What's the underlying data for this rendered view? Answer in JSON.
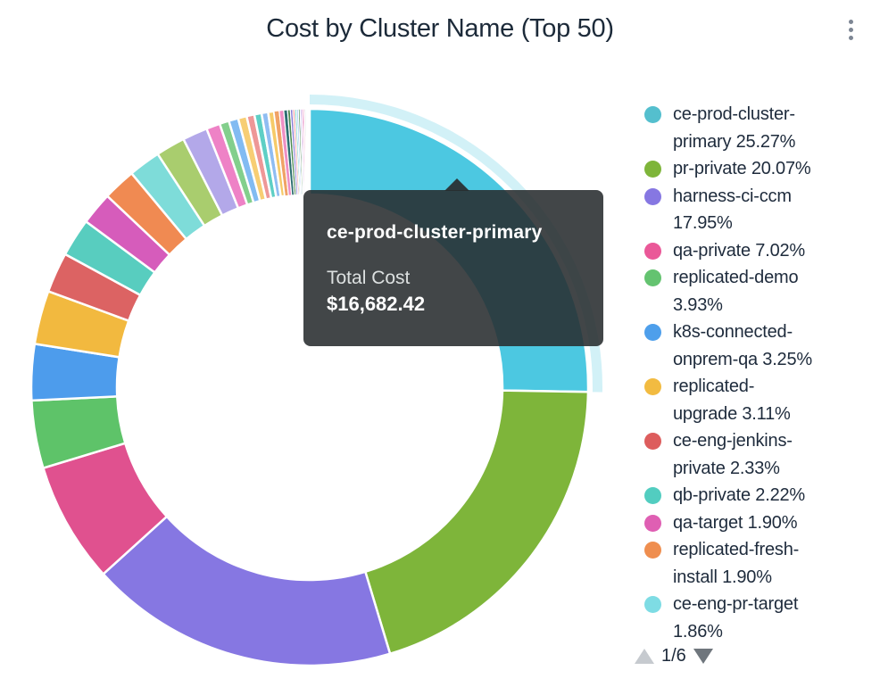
{
  "header": {
    "title": "Cost by Cluster Name (Top 50)"
  },
  "tooltip": {
    "title": "ce-prod-cluster-primary",
    "metric_label": "Total Cost",
    "metric_value": "$16,682.42"
  },
  "legend": {
    "items": [
      {
        "label": "ce-prod-cluster-primary 25.27%",
        "lines": [
          "ce-prod-cluster-",
          "primary 25.27%"
        ],
        "color": "#54bfce"
      },
      {
        "label": "pr-private 20.07%",
        "lines": [
          "pr-private 20.07%"
        ],
        "color": "#7eb53a"
      },
      {
        "label": "harness-ci-ccm 17.95%",
        "lines": [
          "harness-ci-ccm",
          "17.95%"
        ],
        "color": "#8677e2"
      },
      {
        "label": "qa-private 7.02%",
        "lines": [
          "qa-private 7.02%"
        ],
        "color": "#ea5898"
      },
      {
        "label": "replicated-demo 3.93%",
        "lines": [
          "replicated-demo",
          "3.93%"
        ],
        "color": "#64c370"
      },
      {
        "label": "k8s-connected-onprem-qa 3.25%",
        "lines": [
          "k8s-connected-",
          "onprem-qa 3.25%"
        ],
        "color": "#4e9feb"
      },
      {
        "label": "replicated-upgrade 3.11%",
        "lines": [
          "replicated-",
          "upgrade 3.11%"
        ],
        "color": "#f2bb41"
      },
      {
        "label": "ce-eng-jenkins-private 2.33%",
        "lines": [
          "ce-eng-jenkins-",
          "private 2.33%"
        ],
        "color": "#dd5d5d"
      },
      {
        "label": "qb-private 2.22%",
        "lines": [
          "qb-private 2.22%"
        ],
        "color": "#52cdc0"
      },
      {
        "label": "qa-target 1.90%",
        "lines": [
          "qa-target 1.90%"
        ],
        "color": "#df5fb3"
      },
      {
        "label": "replicated-fresh-install 1.90%",
        "lines": [
          "replicated-fresh-",
          "install 1.90%"
        ],
        "color": "#ef8e4f"
      },
      {
        "label": "ce-eng-pr-target 1.86%",
        "lines": [
          "ce-eng-pr-target",
          "1.86%"
        ],
        "color": "#7edce4"
      }
    ],
    "pagination": {
      "page": "1/6"
    }
  },
  "chart_data": {
    "type": "pie",
    "donut": true,
    "title": "Cost by Cluster Name (Top 50)",
    "start_angle_deg": 0,
    "direction": "clockwise",
    "unit": "%",
    "segments": [
      {
        "name": "ce-prod-cluster-primary",
        "pct": 25.27,
        "total_cost": "$16,682.42",
        "color": "#4cc8e1",
        "highlighted": true
      },
      {
        "name": "pr-private",
        "pct": 20.07,
        "color": "#7eb53a"
      },
      {
        "name": "harness-ci-ccm",
        "pct": 17.95,
        "color": "#8677e2"
      },
      {
        "name": "qa-private",
        "pct": 7.02,
        "color": "#e0518f"
      },
      {
        "name": "replicated-demo",
        "pct": 3.93,
        "color": "#5ec369"
      },
      {
        "name": "k8s-connected-onprem-qa",
        "pct": 3.25,
        "color": "#4d9cec"
      },
      {
        "name": "replicated-upgrade",
        "pct": 3.11,
        "color": "#f2b93f"
      },
      {
        "name": "ce-eng-jenkins-private",
        "pct": 2.33,
        "color": "#dc6363"
      },
      {
        "name": "qb-private",
        "pct": 2.22,
        "color": "#58cdbf"
      },
      {
        "name": "qa-target",
        "pct": 1.9,
        "color": "#d65cbb"
      },
      {
        "name": "replicated-fresh-install",
        "pct": 1.9,
        "color": "#f08a52"
      },
      {
        "name": "ce-eng-pr-target",
        "pct": 1.86,
        "color": "#7edcd9"
      }
    ],
    "unlabeled_segments": [
      {
        "pct": 1.7,
        "color": "#a9cd6e"
      },
      {
        "pct": 1.45,
        "color": "#b3a8e9"
      },
      {
        "pct": 0.8,
        "color": "#ee82c6"
      },
      {
        "pct": 0.55,
        "color": "#83cf8c"
      },
      {
        "pct": 0.55,
        "color": "#82bbf2"
      },
      {
        "pct": 0.5,
        "color": "#f7ce74"
      },
      {
        "pct": 0.45,
        "color": "#ee9797"
      },
      {
        "pct": 0.42,
        "color": "#5ecfc5"
      },
      {
        "pct": 0.38,
        "color": "#8fbdf2"
      },
      {
        "pct": 0.34,
        "color": "#f6ca68"
      },
      {
        "pct": 0.3,
        "color": "#f0a266"
      },
      {
        "pct": 0.26,
        "color": "#ee8fc4"
      },
      {
        "pct": 0.22,
        "color": "#2d6e72"
      },
      {
        "pct": 0.16,
        "color": "#4c8a50"
      },
      {
        "pct": 0.14,
        "color": "#8579d6"
      },
      {
        "pct": 0.12,
        "color": "#f09c9c"
      },
      {
        "pct": 0.1,
        "color": "#55ccbf"
      },
      {
        "pct": 0.1,
        "color": "#8fbdf2"
      },
      {
        "pct": 0.1,
        "color": "#4c8a50"
      },
      {
        "pct": 0.09,
        "color": "#b3a8e9"
      },
      {
        "pct": 0.09,
        "color": "#d65cbb"
      },
      {
        "pct": 0.08,
        "color": "#e0518f"
      },
      {
        "pct": 0.07,
        "color": "#2d6e72"
      },
      {
        "pct": 0.06,
        "color": "#7a6ed8"
      },
      {
        "pct": 0.05,
        "color": "#44636b"
      },
      {
        "pct": 0.04,
        "color": "#8579d6"
      },
      {
        "pct": 0.04,
        "color": "#2d6e72"
      },
      {
        "pct": 0.03,
        "color": "#445566"
      }
    ]
  }
}
